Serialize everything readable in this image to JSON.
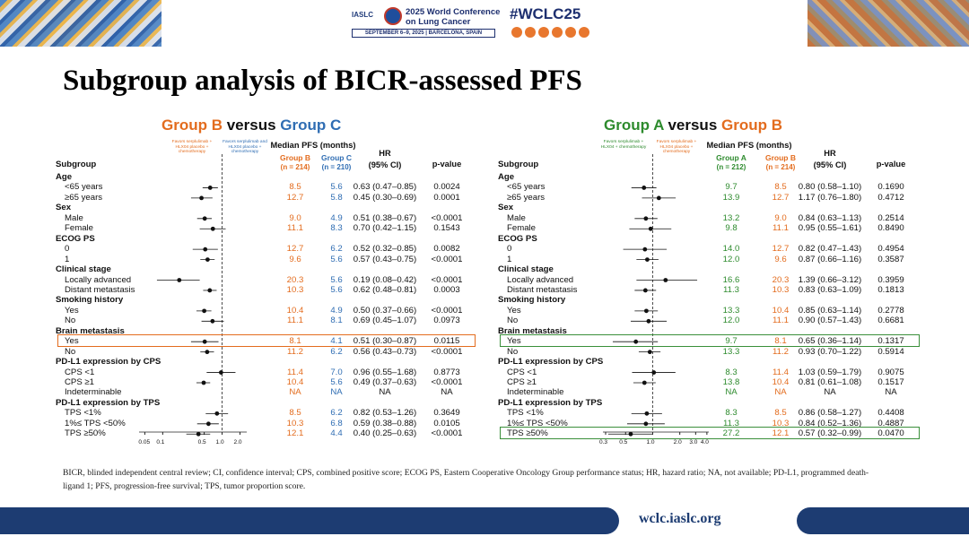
{
  "banner": {
    "org": "IASLC",
    "conference": "2025 World Conference on Lung Cancer",
    "dates": "SEPTEMBER 6–9, 2025 | BARCELONA, SPAIN",
    "hashtag": "#WCLC25",
    "social_icons": [
      "facebook-icon",
      "linkedin-icon",
      "x-icon",
      "instagram-icon",
      "youtube-icon",
      "wechat-icon"
    ]
  },
  "title": "Subgroup analysis of BICR-assessed PFS",
  "colors": {
    "orange": "#e36c1e",
    "blue": "#2f6db3",
    "green": "#2e8b2e",
    "highlight_orange": "#e36c1e",
    "highlight_green": "#3a8f3a",
    "bar": "#1d3c72"
  },
  "left": {
    "header_a": "Group B",
    "header_vs": " versus ",
    "header_b": "Group C",
    "fav_left": "Favors serplulimab + HLX04 placebo + chemotherapy",
    "fav_right": "Favors serplulimab and HLX04 placebo + chemotherapy",
    "col_subgroup": "Subgroup",
    "col_median": "Median PFS (months)",
    "col_g1": "Group B",
    "col_g1_n": "(n = 214)",
    "col_g2": "Group C",
    "col_g2_n": "(n = 210)",
    "col_hr": "HR",
    "col_hr2": "(95% CI)",
    "col_p": "p-value",
    "axis_ticks": [
      "0.05",
      "0.1",
      "0.5",
      "1.0",
      "2.0"
    ],
    "rows": [
      {
        "label": "Age",
        "cat": true
      },
      {
        "label": "<65 years",
        "g1": "8.5",
        "g2": "5.6",
        "hr_text": "0.63 (0.47–0.85)",
        "p": "0.0024",
        "hr": 0.63,
        "lo": 0.47,
        "hi": 0.85
      },
      {
        "label": "≥65 years",
        "g1": "12.7",
        "g2": "5.8",
        "hr_text": "0.45 (0.30–0.69)",
        "p": "0.0001",
        "hr": 0.45,
        "lo": 0.3,
        "hi": 0.69
      },
      {
        "label": "Sex",
        "cat": true
      },
      {
        "label": "Male",
        "g1": "9.0",
        "g2": "4.9",
        "hr_text": "0.51 (0.38–0.67)",
        "p": "<0.0001",
        "hr": 0.51,
        "lo": 0.38,
        "hi": 0.67
      },
      {
        "label": "Female",
        "g1": "11.1",
        "g2": "8.3",
        "hr_text": "0.70 (0.42–1.15)",
        "p": "0.1543",
        "hr": 0.7,
        "lo": 0.42,
        "hi": 1.15
      },
      {
        "label": "ECOG PS",
        "cat": true
      },
      {
        "label": "0",
        "g1": "12.7",
        "g2": "6.2",
        "hr_text": "0.52 (0.32–0.85)",
        "p": "0.0082",
        "hr": 0.52,
        "lo": 0.32,
        "hi": 0.85
      },
      {
        "label": "1",
        "g1": "9.6",
        "g2": "5.6",
        "hr_text": "0.57 (0.43–0.75)",
        "p": "<0.0001",
        "hr": 0.57,
        "lo": 0.43,
        "hi": 0.75
      },
      {
        "label": "Clinical stage",
        "cat": true
      },
      {
        "label": "Locally advanced",
        "g1": "20.3",
        "g2": "5.6",
        "hr_text": "0.19 (0.08–0.42)",
        "p": "<0.0001",
        "hr": 0.19,
        "lo": 0.08,
        "hi": 0.42
      },
      {
        "label": "Distant metastasis",
        "g1": "10.3",
        "g2": "5.6",
        "hr_text": "0.62 (0.48–0.81)",
        "p": "0.0003",
        "hr": 0.62,
        "lo": 0.48,
        "hi": 0.81
      },
      {
        "label": "Smoking history",
        "cat": true
      },
      {
        "label": "Yes",
        "g1": "10.4",
        "g2": "4.9",
        "hr_text": "0.50 (0.37–0.66)",
        "p": "<0.0001",
        "hr": 0.5,
        "lo": 0.37,
        "hi": 0.66
      },
      {
        "label": "No",
        "g1": "11.1",
        "g2": "8.1",
        "hr_text": "0.69 (0.45–1.07)",
        "p": "0.0973",
        "hr": 0.69,
        "lo": 0.45,
        "hi": 1.07
      },
      {
        "label": "Brain metastasis",
        "cat": true
      },
      {
        "label": "Yes",
        "g1": "8.1",
        "g2": "4.1",
        "hr_text": "0.51 (0.30–0.87)",
        "p": "0.0115",
        "hr": 0.51,
        "lo": 0.3,
        "hi": 0.87,
        "highlight": true
      },
      {
        "label": "No",
        "g1": "11.2",
        "g2": "6.2",
        "hr_text": "0.56 (0.43–0.73)",
        "p": "<0.0001",
        "hr": 0.56,
        "lo": 0.43,
        "hi": 0.73
      },
      {
        "label": "PD-L1 expression by CPS",
        "cat": true
      },
      {
        "label": "CPS <1",
        "g1": "11.4",
        "g2": "7.0",
        "hr_text": "0.96 (0.55–1.68)",
        "p": "0.8773",
        "hr": 0.96,
        "lo": 0.55,
        "hi": 1.68
      },
      {
        "label": "CPS ≥1",
        "g1": "10.4",
        "g2": "5.6",
        "hr_text": "0.49 (0.37–0.63)",
        "p": "<0.0001",
        "hr": 0.49,
        "lo": 0.37,
        "hi": 0.63
      },
      {
        "label": "Indeterminable",
        "g1": "NA",
        "g2": "NA",
        "hr_text": "NA",
        "p": "NA"
      },
      {
        "label": "PD-L1 expression by TPS",
        "cat": true
      },
      {
        "label": "TPS <1%",
        "g1": "8.5",
        "g2": "6.2",
        "hr_text": "0.82 (0.53–1.26)",
        "p": "0.3649",
        "hr": 0.82,
        "lo": 0.53,
        "hi": 1.26
      },
      {
        "label": "1%≤ TPS <50%",
        "g1": "10.3",
        "g2": "6.8",
        "hr_text": "0.59 (0.38–0.88)",
        "p": "0.0105",
        "hr": 0.59,
        "lo": 0.38,
        "hi": 0.88
      },
      {
        "label": "TPS ≥50%",
        "g1": "12.1",
        "g2": "4.4",
        "hr_text": "0.40 (0.25–0.63)",
        "p": "<0.0001",
        "hr": 0.4,
        "lo": 0.25,
        "hi": 0.63
      }
    ]
  },
  "right": {
    "header_a": "Group A",
    "header_vs": " versus ",
    "header_b": "Group B",
    "fav_left": "Favors serplulimab + HLX04 + chemotherapy",
    "fav_right": "Favors serplulimab + HLX04 placebo + chemotherapy",
    "col_subgroup": "Subgroup",
    "col_median": "Median PFS (months)",
    "col_g1": "Group A",
    "col_g1_n": "(n = 212)",
    "col_g2": "Group B",
    "col_g2_n": "(n = 214)",
    "col_hr": "HR",
    "col_hr2": "(95% CI)",
    "col_p": "p-value",
    "axis_ticks": [
      "0.3",
      "0.5",
      "1.0",
      "2.0",
      "3.0",
      "4.0"
    ],
    "rows": [
      {
        "label": "Age",
        "cat": true
      },
      {
        "label": "<65 years",
        "g1": "9.7",
        "g2": "8.5",
        "hr_text": "0.80 (0.58–1.10)",
        "p": "0.1690",
        "hr": 0.8,
        "lo": 0.58,
        "hi": 1.1
      },
      {
        "label": "≥65 years",
        "g1": "13.9",
        "g2": "12.7",
        "hr_text": "1.17 (0.76–1.80)",
        "p": "0.4712",
        "hr": 1.17,
        "lo": 0.76,
        "hi": 1.8
      },
      {
        "label": "Sex",
        "cat": true
      },
      {
        "label": "Male",
        "g1": "13.2",
        "g2": "9.0",
        "hr_text": "0.84 (0.63–1.13)",
        "p": "0.2514",
        "hr": 0.84,
        "lo": 0.63,
        "hi": 1.13
      },
      {
        "label": "Female",
        "g1": "9.8",
        "g2": "11.1",
        "hr_text": "0.95 (0.55–1.61)",
        "p": "0.8490",
        "hr": 0.95,
        "lo": 0.55,
        "hi": 1.61
      },
      {
        "label": "ECOG PS",
        "cat": true
      },
      {
        "label": "0",
        "g1": "14.0",
        "g2": "12.7",
        "hr_text": "0.82 (0.47–1.43)",
        "p": "0.4954",
        "hr": 0.82,
        "lo": 0.47,
        "hi": 1.43
      },
      {
        "label": "1",
        "g1": "12.0",
        "g2": "9.6",
        "hr_text": "0.87 (0.66–1.16)",
        "p": "0.3587",
        "hr": 0.87,
        "lo": 0.66,
        "hi": 1.16
      },
      {
        "label": "Clinical stage",
        "cat": true
      },
      {
        "label": "Locally advanced",
        "g1": "16.6",
        "g2": "20.3",
        "hr_text": "1.39 (0.66–3.12)",
        "p": "0.3959",
        "hr": 1.39,
        "lo": 0.66,
        "hi": 3.12
      },
      {
        "label": "Distant metastasis",
        "g1": "11.3",
        "g2": "10.3",
        "hr_text": "0.83 (0.63–1.09)",
        "p": "0.1813",
        "hr": 0.83,
        "lo": 0.63,
        "hi": 1.09
      },
      {
        "label": "Smoking history",
        "cat": true
      },
      {
        "label": "Yes",
        "g1": "13.3",
        "g2": "10.4",
        "hr_text": "0.85 (0.63–1.14)",
        "p": "0.2778",
        "hr": 0.85,
        "lo": 0.63,
        "hi": 1.14
      },
      {
        "label": "No",
        "g1": "12.0",
        "g2": "11.1",
        "hr_text": "0.90 (0.57–1.43)",
        "p": "0.6681",
        "hr": 0.9,
        "lo": 0.57,
        "hi": 1.43
      },
      {
        "label": "Brain metastasis",
        "cat": true
      },
      {
        "label": "Yes",
        "g1": "9.7",
        "g2": "8.1",
        "hr_text": "0.65 (0.36–1.14)",
        "p": "0.1317",
        "hr": 0.65,
        "lo": 0.36,
        "hi": 1.14,
        "highlight": true
      },
      {
        "label": "No",
        "g1": "13.3",
        "g2": "11.2",
        "hr_text": "0.93 (0.70–1.22)",
        "p": "0.5914",
        "hr": 0.93,
        "lo": 0.7,
        "hi": 1.22
      },
      {
        "label": "PD-L1 expression by CPS",
        "cat": true
      },
      {
        "label": "CPS <1",
        "g1": "8.3",
        "g2": "11.4",
        "hr_text": "1.03 (0.59–1.79)",
        "p": "0.9075",
        "hr": 1.03,
        "lo": 0.59,
        "hi": 1.79
      },
      {
        "label": "CPS ≥1",
        "g1": "13.8",
        "g2": "10.4",
        "hr_text": "0.81 (0.61–1.08)",
        "p": "0.1517",
        "hr": 0.81,
        "lo": 0.61,
        "hi": 1.08
      },
      {
        "label": "Indeterminable",
        "g1": "NA",
        "g2": "NA",
        "hr_text": "NA",
        "p": "NA"
      },
      {
        "label": "PD-L1 expression by TPS",
        "cat": true
      },
      {
        "label": "TPS <1%",
        "g1": "8.3",
        "g2": "8.5",
        "hr_text": "0.86 (0.58–1.27)",
        "p": "0.4408",
        "hr": 0.86,
        "lo": 0.58,
        "hi": 1.27
      },
      {
        "label": "1%≤ TPS <50%",
        "g1": "11.3",
        "g2": "10.3",
        "hr_text": "0.84 (0.52–1.36)",
        "p": "0.4887",
        "hr": 0.84,
        "lo": 0.52,
        "hi": 1.36
      },
      {
        "label": "TPS ≥50%",
        "g1": "27.2",
        "g2": "12.1",
        "hr_text": "0.57 (0.32–0.99)",
        "p": "0.0470",
        "hr": 0.57,
        "lo": 0.32,
        "hi": 0.99,
        "highlight": true
      }
    ]
  },
  "footnote": "BICR, blinded independent central review; CI, confidence interval; CPS, combined positive score; ECOG PS, Eastern Cooperative Oncology Group performance status; HR, hazard ratio; NA, not available; PD-L1, programmed death-ligand 1; PFS, progression-free survival; TPS, tumor proportion score.",
  "website": "wclc.iaslc.org"
}
